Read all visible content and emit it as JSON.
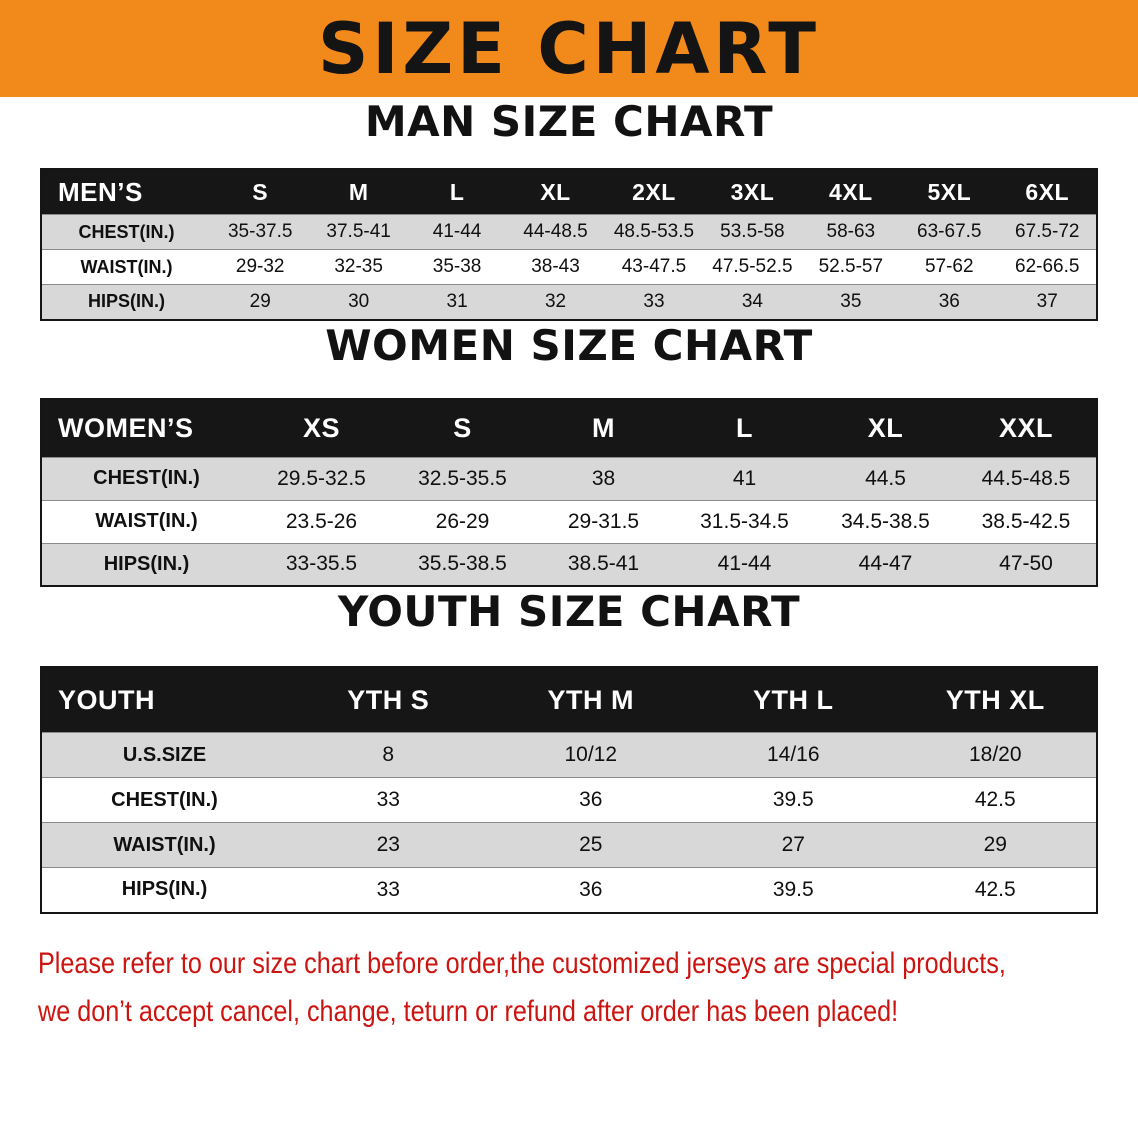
{
  "colors": {
    "banner_bg": "#f28a1b",
    "header_bg": "#161616",
    "row_alt_bg": "#d8d8d8",
    "disclaimer_red": "#cc1410"
  },
  "banner": {
    "title": "SIZE CHART"
  },
  "sections": [
    {
      "heading": "MAN SIZE CHART",
      "table": {
        "header": [
          "MEN’S",
          "S",
          "M",
          "L",
          "XL",
          "2XL",
          "3XL",
          "4XL",
          "5XL",
          "6XL"
        ],
        "rows": [
          [
            "CHEST(IN.)",
            "35-37.5",
            "37.5-41",
            "41-44",
            "44-48.5",
            "48.5-53.5",
            "53.5-58",
            "58-63",
            "63-67.5",
            "67.5-72"
          ],
          [
            "WAIST(IN.)",
            "29-32",
            "32-35",
            "35-38",
            "38-43",
            "43-47.5",
            "47.5-52.5",
            "52.5-57",
            "57-62",
            "62-66.5"
          ],
          [
            "HIPS(IN.)",
            "29",
            "30",
            "31",
            "32",
            "33",
            "34",
            "35",
            "36",
            "37"
          ]
        ]
      }
    },
    {
      "heading": "WOMEN SIZE CHART",
      "table": {
        "header": [
          "WOMEN’S",
          "XS",
          "S",
          "M",
          "L",
          "XL",
          "XXL"
        ],
        "rows": [
          [
            "CHEST(IN.)",
            "29.5-32.5",
            "32.5-35.5",
            "38",
            "41",
            "44.5",
            "44.5-48.5"
          ],
          [
            "WAIST(IN.)",
            "23.5-26",
            "26-29",
            "29-31.5",
            "31.5-34.5",
            "34.5-38.5",
            "38.5-42.5"
          ],
          [
            "HIPS(IN.)",
            "33-35.5",
            "35.5-38.5",
            "38.5-41",
            "41-44",
            "44-47",
            "47-50"
          ]
        ]
      }
    },
    {
      "heading": "YOUTH SIZE CHART",
      "table": {
        "header": [
          "YOUTH",
          "YTH S",
          "YTH M",
          "YTH L",
          "YTH XL"
        ],
        "rows": [
          [
            "U.S.SIZE",
            "8",
            "10/12",
            "14/16",
            "18/20"
          ],
          [
            "CHEST(IN.)",
            "33",
            "36",
            "39.5",
            "42.5"
          ],
          [
            "WAIST(IN.)",
            "23",
            "25",
            "27",
            "29"
          ],
          [
            "HIPS(IN.)",
            "33",
            "36",
            "39.5",
            "42.5"
          ]
        ]
      }
    }
  ],
  "disclaimer": {
    "line1": "Please refer to our size chart before order,the customized jerseys are special products,",
    "line2": "we don’t accept cancel, change, teturn or refund after order has been placed!"
  }
}
